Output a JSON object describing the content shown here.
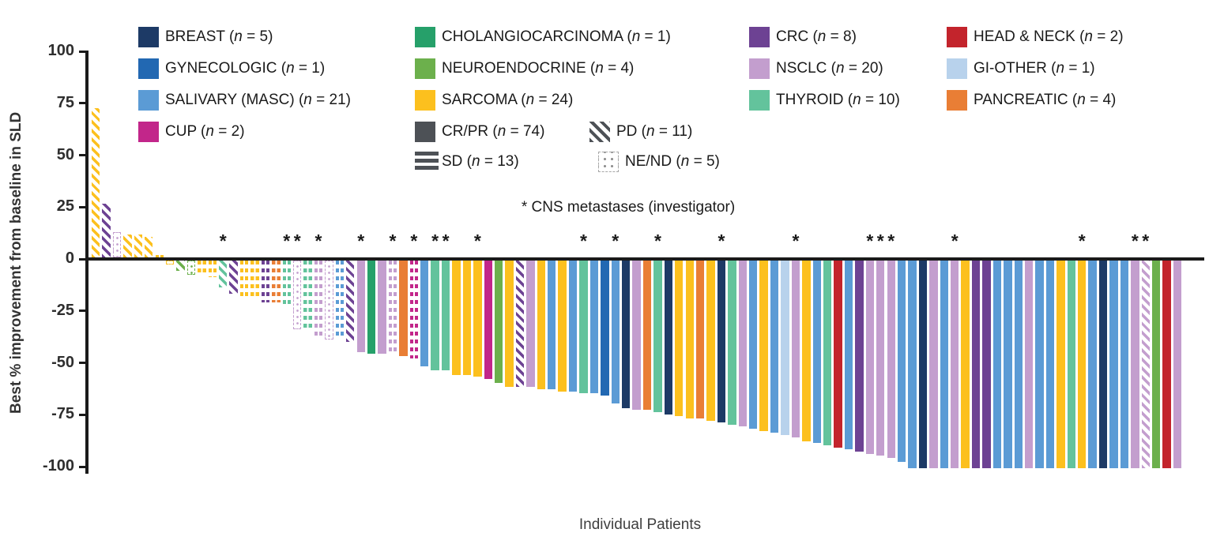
{
  "figure": {
    "y_axis_label": "Best % improvement from baseline in SLD",
    "x_axis_label": "Individual Patients",
    "annotation": "* CNS metastases (investigator)"
  },
  "legend": {
    "cancer_types": [
      {
        "label": "BREAST",
        "n": 5,
        "color": "#1d3a66",
        "col": 0,
        "row": 0
      },
      {
        "label": "GYNECOLOGIC",
        "n": 1,
        "color": "#2268b2",
        "col": 0,
        "row": 1
      },
      {
        "label": "SALIVARY (MASC)",
        "n": 21,
        "color": "#5b9bd5",
        "col": 0,
        "row": 2
      },
      {
        "label": "CUP",
        "n": 2,
        "color": "#c2268a",
        "col": 0,
        "row": 3
      },
      {
        "label": "CHOLANGIOCARCINOMA",
        "n": 1,
        "color": "#26a06a",
        "col": 1,
        "row": 0
      },
      {
        "label": "NEUROENDOCRINE",
        "n": 4,
        "color": "#6cb04c",
        "col": 1,
        "row": 1
      },
      {
        "label": "SARCOMA",
        "n": 24,
        "color": "#fcc01e",
        "col": 1,
        "row": 2
      },
      {
        "label": "CRC",
        "n": 8,
        "color": "#6d4293",
        "col": 2,
        "row": 0
      },
      {
        "label": "NSCLC",
        "n": 20,
        "color": "#c39ece",
        "col": 2,
        "row": 1
      },
      {
        "label": "THYROID",
        "n": 10,
        "color": "#63c39c",
        "col": 2,
        "row": 2
      },
      {
        "label": "HEAD & NECK",
        "n": 2,
        "color": "#c3242c",
        "col": 3,
        "row": 0
      },
      {
        "label": "GI-OTHER",
        "n": 1,
        "color": "#b8d2ec",
        "col": 3,
        "row": 1
      },
      {
        "label": "PANCREATIC",
        "n": 4,
        "color": "#e97e35",
        "col": 3,
        "row": 2
      }
    ],
    "responses": [
      {
        "label": "CR/PR",
        "n": 74,
        "style": "solid",
        "color": "#4d5156"
      },
      {
        "label": "PD",
        "n": 11,
        "style": "hatch",
        "color": "#4d5156"
      },
      {
        "label": "SD",
        "n": 13,
        "style": "dashes",
        "color": "#4d5156"
      },
      {
        "label": "NE/ND",
        "n": 5,
        "style": "dots",
        "color": "#8c8c8c"
      }
    ]
  },
  "chart_data": {
    "type": "bar",
    "title": "Waterfall plot of best percent change in SLD per patient",
    "xlabel": "Individual Patients",
    "ylabel": "Best % improvement from baseline in SLD",
    "ylim": [
      -100,
      100
    ],
    "yticks": [
      100,
      75,
      50,
      25,
      0,
      -25,
      -50,
      -75,
      -100
    ],
    "cns_note": "* CNS metastases (investigator)",
    "patients": [
      {
        "cancer": "SARCOMA",
        "response": "PD",
        "value": 72,
        "cns": false
      },
      {
        "cancer": "CRC",
        "response": "PD",
        "value": 26,
        "cns": false
      },
      {
        "cancer": "NSCLC",
        "response": "NE/ND",
        "value": 12,
        "cns": false
      },
      {
        "cancer": "SARCOMA",
        "response": "PD",
        "value": 11,
        "cns": false
      },
      {
        "cancer": "SARCOMA",
        "response": "PD",
        "value": 11,
        "cns": false
      },
      {
        "cancer": "SARCOMA",
        "response": "PD",
        "value": 10,
        "cns": false
      },
      {
        "cancer": "SARCOMA",
        "response": "SD",
        "value": 1,
        "cns": false
      },
      {
        "cancer": "SARCOMA",
        "response": "NE/ND",
        "value": -2,
        "cns": false
      },
      {
        "cancer": "NEUROENDOCRINE",
        "response": "PD",
        "value": -5,
        "cns": false
      },
      {
        "cancer": "NEUROENDOCRINE",
        "response": "NE/ND",
        "value": -7,
        "cns": false
      },
      {
        "cancer": "SARCOMA",
        "response": "SD",
        "value": -7,
        "cns": false
      },
      {
        "cancer": "SARCOMA",
        "response": "SD",
        "value": -8,
        "cns": false
      },
      {
        "cancer": "THYROID",
        "response": "PD",
        "value": -13,
        "cns": true
      },
      {
        "cancer": "CRC",
        "response": "PD",
        "value": -16,
        "cns": false
      },
      {
        "cancer": "SARCOMA",
        "response": "SD",
        "value": -17,
        "cns": false
      },
      {
        "cancer": "SARCOMA",
        "response": "SD",
        "value": -19,
        "cns": false
      },
      {
        "cancer": "CRC",
        "response": "SD",
        "value": -20,
        "cns": false
      },
      {
        "cancer": "PANCREATIC",
        "response": "SD",
        "value": -20,
        "cns": false
      },
      {
        "cancer": "THYROID",
        "response": "SD",
        "value": -21,
        "cns": true
      },
      {
        "cancer": "NSCLC",
        "response": "NE/ND",
        "value": -33,
        "cns": true
      },
      {
        "cancer": "THYROID",
        "response": "SD",
        "value": -34,
        "cns": false
      },
      {
        "cancer": "NSCLC",
        "response": "SD",
        "value": -37,
        "cns": true
      },
      {
        "cancer": "NSCLC",
        "response": "NE/ND",
        "value": -38,
        "cns": false
      },
      {
        "cancer": "SALIVARY (MASC)",
        "response": "SD",
        "value": -38,
        "cns": false
      },
      {
        "cancer": "CRC",
        "response": "PD",
        "value": -39,
        "cns": false
      },
      {
        "cancer": "NSCLC",
        "response": "CR/PR",
        "value": -44,
        "cns": true
      },
      {
        "cancer": "CHOLANGIOCARCINOMA",
        "response": "CR/PR",
        "value": -45,
        "cns": false
      },
      {
        "cancer": "NSCLC",
        "response": "CR/PR",
        "value": -45,
        "cns": false
      },
      {
        "cancer": "NSCLC",
        "response": "SD",
        "value": -45,
        "cns": true
      },
      {
        "cancer": "PANCREATIC",
        "response": "CR/PR",
        "value": -46,
        "cns": false
      },
      {
        "cancer": "CUP",
        "response": "SD",
        "value": -47,
        "cns": true
      },
      {
        "cancer": "SALIVARY (MASC)",
        "response": "CR/PR",
        "value": -51,
        "cns": false
      },
      {
        "cancer": "THYROID",
        "response": "CR/PR",
        "value": -53,
        "cns": true
      },
      {
        "cancer": "THYROID",
        "response": "CR/PR",
        "value": -53,
        "cns": true
      },
      {
        "cancer": "SARCOMA",
        "response": "CR/PR",
        "value": -55,
        "cns": false
      },
      {
        "cancer": "SARCOMA",
        "response": "CR/PR",
        "value": -55,
        "cns": false
      },
      {
        "cancer": "SARCOMA",
        "response": "CR/PR",
        "value": -56,
        "cns": true
      },
      {
        "cancer": "CUP",
        "response": "CR/PR",
        "value": -57,
        "cns": false
      },
      {
        "cancer": "NEUROENDOCRINE",
        "response": "CR/PR",
        "value": -59,
        "cns": false
      },
      {
        "cancer": "SARCOMA",
        "response": "CR/PR",
        "value": -61,
        "cns": false
      },
      {
        "cancer": "CRC",
        "response": "PD",
        "value": -61,
        "cns": false
      },
      {
        "cancer": "NSCLC",
        "response": "CR/PR",
        "value": -61,
        "cns": false
      },
      {
        "cancer": "SARCOMA",
        "response": "CR/PR",
        "value": -62,
        "cns": false
      },
      {
        "cancer": "SALIVARY (MASC)",
        "response": "CR/PR",
        "value": -62,
        "cns": false
      },
      {
        "cancer": "SARCOMA",
        "response": "CR/PR",
        "value": -63,
        "cns": false
      },
      {
        "cancer": "SALIVARY (MASC)",
        "response": "CR/PR",
        "value": -63,
        "cns": false
      },
      {
        "cancer": "THYROID",
        "response": "CR/PR",
        "value": -64,
        "cns": true
      },
      {
        "cancer": "SALIVARY (MASC)",
        "response": "CR/PR",
        "value": -64,
        "cns": false
      },
      {
        "cancer": "GYNECOLOGIC",
        "response": "CR/PR",
        "value": -65,
        "cns": false
      },
      {
        "cancer": "SALIVARY (MASC)",
        "response": "CR/PR",
        "value": -69,
        "cns": true
      },
      {
        "cancer": "BREAST",
        "response": "CR/PR",
        "value": -71,
        "cns": false
      },
      {
        "cancer": "NSCLC",
        "response": "CR/PR",
        "value": -72,
        "cns": false
      },
      {
        "cancer": "PANCREATIC",
        "response": "CR/PR",
        "value": -72,
        "cns": false
      },
      {
        "cancer": "THYROID",
        "response": "CR/PR",
        "value": -73,
        "cns": true
      },
      {
        "cancer": "BREAST",
        "response": "CR/PR",
        "value": -74,
        "cns": false
      },
      {
        "cancer": "SARCOMA",
        "response": "CR/PR",
        "value": -75,
        "cns": false
      },
      {
        "cancer": "SARCOMA",
        "response": "CR/PR",
        "value": -76,
        "cns": false
      },
      {
        "cancer": "PANCREATIC",
        "response": "CR/PR",
        "value": -76,
        "cns": false
      },
      {
        "cancer": "SARCOMA",
        "response": "CR/PR",
        "value": -77,
        "cns": false
      },
      {
        "cancer": "BREAST",
        "response": "CR/PR",
        "value": -78,
        "cns": true
      },
      {
        "cancer": "THYROID",
        "response": "CR/PR",
        "value": -79,
        "cns": false
      },
      {
        "cancer": "NSCLC",
        "response": "CR/PR",
        "value": -80,
        "cns": false
      },
      {
        "cancer": "SALIVARY (MASC)",
        "response": "CR/PR",
        "value": -81,
        "cns": false
      },
      {
        "cancer": "SARCOMA",
        "response": "CR/PR",
        "value": -82,
        "cns": false
      },
      {
        "cancer": "SALIVARY (MASC)",
        "response": "CR/PR",
        "value": -83,
        "cns": false
      },
      {
        "cancer": "GI-OTHER",
        "response": "CR/PR",
        "value": -84,
        "cns": false
      },
      {
        "cancer": "NSCLC",
        "response": "CR/PR",
        "value": -85,
        "cns": true
      },
      {
        "cancer": "SARCOMA",
        "response": "CR/PR",
        "value": -87,
        "cns": false
      },
      {
        "cancer": "SALIVARY (MASC)",
        "response": "CR/PR",
        "value": -88,
        "cns": false
      },
      {
        "cancer": "THYROID",
        "response": "CR/PR",
        "value": -89,
        "cns": false
      },
      {
        "cancer": "HEAD & NECK",
        "response": "CR/PR",
        "value": -90,
        "cns": false
      },
      {
        "cancer": "SALIVARY (MASC)",
        "response": "CR/PR",
        "value": -91,
        "cns": false
      },
      {
        "cancer": "CRC",
        "response": "CR/PR",
        "value": -92,
        "cns": false
      },
      {
        "cancer": "NSCLC",
        "response": "CR/PR",
        "value": -93,
        "cns": true
      },
      {
        "cancer": "NSCLC",
        "response": "CR/PR",
        "value": -94,
        "cns": true
      },
      {
        "cancer": "NSCLC",
        "response": "CR/PR",
        "value": -95,
        "cns": true
      },
      {
        "cancer": "SALIVARY (MASC)",
        "response": "CR/PR",
        "value": -97,
        "cns": false
      },
      {
        "cancer": "SALIVARY (MASC)",
        "response": "CR/PR",
        "value": -100,
        "cns": false
      },
      {
        "cancer": "BREAST",
        "response": "CR/PR",
        "value": -100,
        "cns": false
      },
      {
        "cancer": "NSCLC",
        "response": "CR/PR",
        "value": -100,
        "cns": false
      },
      {
        "cancer": "SALIVARY (MASC)",
        "response": "CR/PR",
        "value": -100,
        "cns": false
      },
      {
        "cancer": "NSCLC",
        "response": "CR/PR",
        "value": -100,
        "cns": true
      },
      {
        "cancer": "SARCOMA",
        "response": "CR/PR",
        "value": -100,
        "cns": false
      },
      {
        "cancer": "CRC",
        "response": "CR/PR",
        "value": -100,
        "cns": false
      },
      {
        "cancer": "CRC",
        "response": "CR/PR",
        "value": -100,
        "cns": false
      },
      {
        "cancer": "SALIVARY (MASC)",
        "response": "CR/PR",
        "value": -100,
        "cns": false
      },
      {
        "cancer": "SALIVARY (MASC)",
        "response": "CR/PR",
        "value": -100,
        "cns": false
      },
      {
        "cancer": "SALIVARY (MASC)",
        "response": "CR/PR",
        "value": -100,
        "cns": false
      },
      {
        "cancer": "NSCLC",
        "response": "CR/PR",
        "value": -100,
        "cns": false
      },
      {
        "cancer": "SALIVARY (MASC)",
        "response": "CR/PR",
        "value": -100,
        "cns": false
      },
      {
        "cancer": "SALIVARY (MASC)",
        "response": "CR/PR",
        "value": -100,
        "cns": false
      },
      {
        "cancer": "SARCOMA",
        "response": "CR/PR",
        "value": -100,
        "cns": false
      },
      {
        "cancer": "THYROID",
        "response": "CR/PR",
        "value": -100,
        "cns": false
      },
      {
        "cancer": "SARCOMA",
        "response": "CR/PR",
        "value": -100,
        "cns": true
      },
      {
        "cancer": "SALIVARY (MASC)",
        "response": "CR/PR",
        "value": -100,
        "cns": false
      },
      {
        "cancer": "BREAST",
        "response": "CR/PR",
        "value": -100,
        "cns": false
      },
      {
        "cancer": "SALIVARY (MASC)",
        "response": "CR/PR",
        "value": -100,
        "cns": false
      },
      {
        "cancer": "SALIVARY (MASC)",
        "response": "CR/PR",
        "value": -100,
        "cns": false
      },
      {
        "cancer": "NSCLC",
        "response": "CR/PR",
        "value": -100,
        "cns": true
      },
      {
        "cancer": "NSCLC",
        "response": "PD",
        "value": -100,
        "cns": true
      },
      {
        "cancer": "NEUROENDOCRINE",
        "response": "CR/PR",
        "value": -100,
        "cns": false
      },
      {
        "cancer": "HEAD & NECK",
        "response": "CR/PR",
        "value": -100,
        "cns": false
      },
      {
        "cancer": "NSCLC",
        "response": "CR/PR",
        "value": -100,
        "cns": false
      }
    ]
  }
}
